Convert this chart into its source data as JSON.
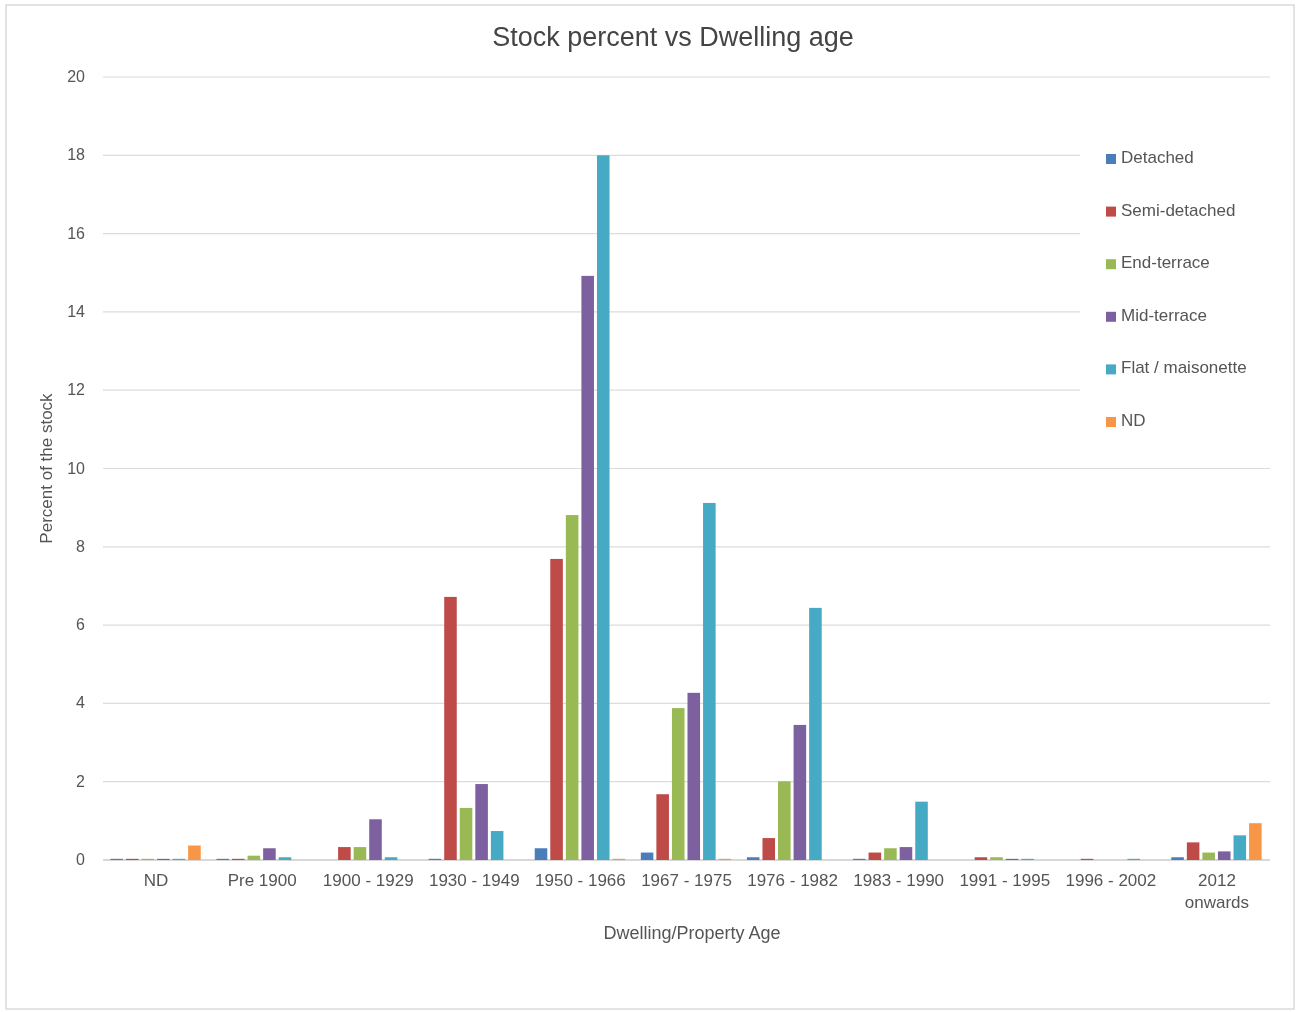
{
  "chart_data": {
    "type": "bar",
    "title": "Stock percent vs Dwelling age",
    "xlabel": "Dwelling/Property Age",
    "ylabel": "Percent of the stock",
    "categories": [
      "ND",
      "Pre 1900",
      "1900 - 1929",
      "1930 - 1949",
      "1950 - 1966",
      "1967 - 1975",
      "1976 - 1982",
      "1983 - 1990",
      "1991 - 1995",
      "1996 - 2002",
      "2012 onwards"
    ],
    "series": [
      {
        "name": "Detached",
        "color": "#4a7ebb",
        "values": [
          0.03,
          0.03,
          null,
          0.03,
          0.3,
          0.19,
          0.07,
          0.03,
          null,
          null,
          0.07
        ]
      },
      {
        "name": "Semi-detached",
        "color": "#be4b48",
        "values": [
          0.03,
          0.03,
          0.33,
          6.72,
          7.69,
          1.68,
          0.56,
          0.19,
          0.07,
          0.03,
          0.45
        ]
      },
      {
        "name": "End-terrace",
        "color": "#98b954",
        "values": [
          0.03,
          0.11,
          0.33,
          1.33,
          8.81,
          3.88,
          2.01,
          0.3,
          0.07,
          null,
          0.19
        ]
      },
      {
        "name": "Mid-terrace",
        "color": "#7d60a0",
        "values": [
          0.03,
          0.3,
          1.04,
          1.94,
          14.92,
          4.27,
          3.45,
          0.33,
          0.03,
          null,
          0.22
        ]
      },
      {
        "name": "Flat / maisonette",
        "color": "#46aac5",
        "values": [
          0.03,
          0.07,
          0.07,
          0.74,
          18,
          9.12,
          6.44,
          1.49,
          0.03,
          0.03,
          0.63
        ]
      },
      {
        "name": "ND",
        "color": "#f79646",
        "values": [
          0.37,
          null,
          null,
          null,
          0.03,
          0.03,
          null,
          null,
          null,
          null,
          0.94
        ]
      }
    ],
    "ylim": [
      0,
      20
    ],
    "yticks": [
      0,
      2,
      4,
      6,
      8,
      10,
      12,
      14,
      16,
      18,
      20
    ],
    "grid": "y",
    "legend": "top right"
  }
}
